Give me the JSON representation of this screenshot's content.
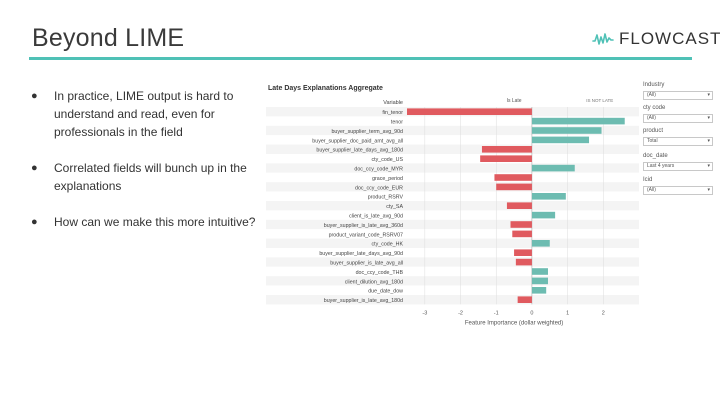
{
  "slide": {
    "title": "Beyond LIME",
    "logo_text": "FLOWCAST",
    "accent_color": "#4fc1b6"
  },
  "bullets": [
    "In practice, LIME output is hard to understand and read, even for professionals in the field",
    "Correlated fields will bunch up in the explanations",
    "How can we make this more intuitive?"
  ],
  "filters": [
    {
      "label": "Industry",
      "value": "(All)"
    },
    {
      "label": "cty code",
      "value": "(All)"
    },
    {
      "label": "product",
      "value": "Total"
    },
    {
      "label": "doc_date",
      "value": "Last 4 years"
    },
    {
      "label": "Icid",
      "value": "(All)"
    }
  ],
  "chart_data": {
    "type": "bar",
    "title": "Late Days Explanations Aggregate",
    "variable_header": "Variable",
    "legend": [
      "Is Late",
      "IS NOT LATE"
    ],
    "positive_color": "#6dbcb1",
    "negative_color": "#e05a5f",
    "categories": [
      "fin_tenor",
      "tenor",
      "buyer_supplier_term_avg_90d",
      "buyer_supplier_doc_paid_amt_avg_all",
      "buyer_supplier_late_days_avg_180d",
      "cty_code_US",
      "doc_ccy_code_MYR",
      "grace_period",
      "doc_ccy_code_EUR",
      "product_RSRV",
      "cty_SA",
      "client_is_late_avg_90d",
      "buyer_supplier_is_late_avg_360d",
      "product_variant_code_RSRV07",
      "cty_code_HK",
      "buyer_supplier_late_days_avg_90d",
      "buyer_supplier_is_late_avg_all",
      "doc_ccy_code_THB",
      "client_dilution_avg_180d",
      "due_date_dow",
      "buyer_supplier_is_late_avg_180d"
    ],
    "values": [
      -3.5,
      2.6,
      1.95,
      1.6,
      -1.4,
      -1.45,
      1.2,
      -1.05,
      -1.0,
      0.95,
      -0.7,
      0.65,
      -0.6,
      -0.55,
      0.5,
      -0.5,
      -0.45,
      0.45,
      0.45,
      0.4,
      -0.4
    ],
    "xlim": [
      -3.5,
      3.0
    ],
    "xticks": [
      -3,
      -2,
      -1,
      0,
      1,
      2
    ],
    "xlabel": "Feature Importance (dollar weighted)"
  }
}
